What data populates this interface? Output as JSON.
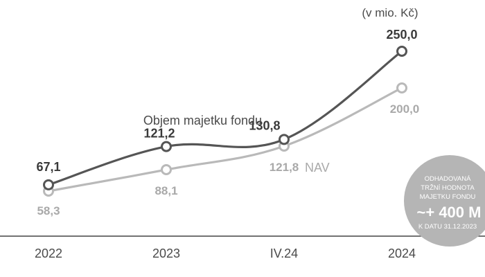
{
  "chart_data": {
    "type": "line",
    "categories": [
      "2022",
      "2023",
      "IV.24",
      "2024"
    ],
    "unit_label": "(v mio. Kč)",
    "ylim": [
      0,
      280
    ],
    "grid": false,
    "series": [
      {
        "name": "Objem majetku fondu",
        "values": [
          67.1,
          121.2,
          130.8,
          250.0
        ],
        "value_labels": [
          "67,1",
          "121,2",
          "130,8",
          "250,0"
        ],
        "color": "#555555"
      },
      {
        "name": "NAV",
        "values": [
          58.3,
          88.1,
          121.8,
          200.0
        ],
        "value_labels": [
          "58,3",
          "88,1",
          "121,8",
          "200,0"
        ],
        "color": "#b9b9b9"
      }
    ],
    "badge": {
      "lines": [
        "ODHADOVANÁ",
        "TRŽNÍ HODNOTA",
        "MAJETKU FONDU"
      ],
      "value": "~+ 400 M",
      "date": "K DATU 31.12.2023",
      "color": "#b5b5b5"
    },
    "baseline_color": "#444444"
  }
}
